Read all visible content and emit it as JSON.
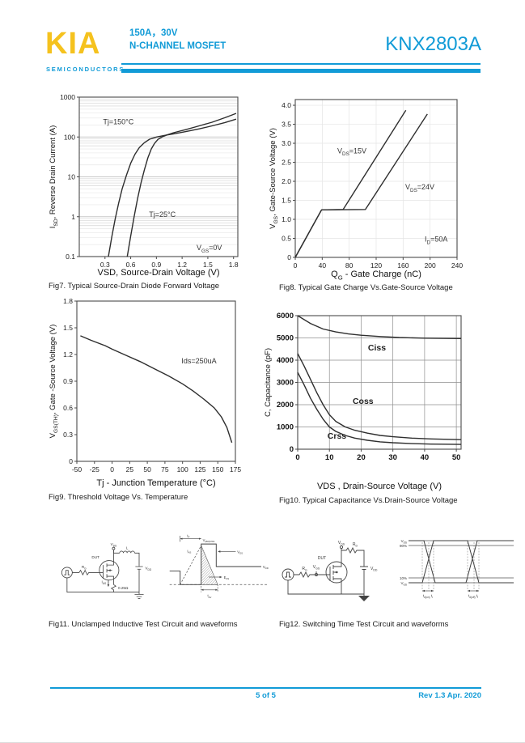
{
  "header": {
    "logo": "KIA",
    "logo_sub": "SEMICONDUCTORS",
    "rating": "150A，30V",
    "device_type": "N-CHANNEL MOSFET",
    "part_number": "KNX2803A"
  },
  "colors": {
    "accent": "#119bd7",
    "logo_yellow": "#f5c21e",
    "curve": "#2e2e2e",
    "grid_light": "#ececec",
    "grid_dark": "#8f8f8f"
  },
  "chart_data": [
    {
      "id": "fig7",
      "type": "line",
      "caption": "Fig7. Typical Source-Drain Diode Forward Voltage",
      "xlabel": "VSD, Source-Drain Voltage (V)",
      "ylabel": "I~SD~, Reverse Drain Current (A)",
      "xlim": [
        0,
        1.85
      ],
      "ylim": [
        0.1,
        1000
      ],
      "yscale": "log",
      "grid": "logband",
      "xticks": [
        0.3,
        0.6,
        0.9,
        1.2,
        1.5,
        1.8
      ],
      "xtick_labels": [
        "0.3",
        "0.6",
        "0.9",
        "1.2",
        "1.5",
        "1.8"
      ],
      "yticks": [
        0.1,
        1,
        10,
        100,
        1000
      ],
      "ytick_labels": [
        "0.1",
        "1",
        "10",
        "100",
        "1000"
      ],
      "series": [
        {
          "name": "Tj=150C",
          "points": [
            [
              0.34,
              0.1
            ],
            [
              0.38,
              0.32
            ],
            [
              0.42,
              0.9
            ],
            [
              0.46,
              2.2
            ],
            [
              0.5,
              5
            ],
            [
              0.55,
              11
            ],
            [
              0.6,
              22
            ],
            [
              0.65,
              37
            ],
            [
              0.7,
              54
            ],
            [
              0.76,
              72
            ],
            [
              0.82,
              88
            ],
            [
              0.9,
              100
            ],
            [
              1.02,
              112
            ],
            [
              1.1,
              120
            ],
            [
              1.25,
              138
            ],
            [
              1.4,
              160
            ],
            [
              1.55,
              190
            ],
            [
              1.7,
              230
            ],
            [
              1.83,
              280
            ]
          ]
        },
        {
          "name": "Tj=25C",
          "points": [
            [
              0.56,
              0.1
            ],
            [
              0.6,
              0.33
            ],
            [
              0.64,
              1.0
            ],
            [
              0.68,
              2.8
            ],
            [
              0.72,
              7
            ],
            [
              0.76,
              15
            ],
            [
              0.8,
              30
            ],
            [
              0.84,
              50
            ],
            [
              0.88,
              70
            ],
            [
              0.92,
              88
            ],
            [
              0.97,
              101
            ],
            [
              1.02,
              112
            ],
            [
              1.1,
              128
            ],
            [
              1.25,
              155
            ],
            [
              1.4,
              190
            ],
            [
              1.55,
              235
            ],
            [
              1.7,
              305
            ],
            [
              1.83,
              390
            ]
          ]
        }
      ],
      "annotations": [
        {
          "text": "Tj=150°C",
          "fx": 0.15,
          "fy": 0.17
        },
        {
          "text": "Tj=25°C",
          "fx": 0.44,
          "fy": 0.75
        },
        {
          "text": "V~GS~=0V",
          "fx": 0.74,
          "fy": 0.96
        }
      ]
    },
    {
      "id": "fig8",
      "type": "line",
      "caption": "Fig8. Typical Gate Charge Vs.Gate-Source Voltage",
      "xlabel": "Q~G~ - Gate Charge (nC)",
      "ylabel": "V~GS~, Gate-Source Voltage (V)",
      "xlim": [
        0,
        240
      ],
      "ylim": [
        0,
        4.15
      ],
      "yscale": "linear",
      "grid": "faint",
      "xticks": [
        0,
        40,
        80,
        120,
        160,
        200,
        240
      ],
      "xtick_labels": [
        "0",
        "40",
        "80",
        "120",
        "160",
        "200",
        "240"
      ],
      "yticks": [
        0,
        0.5,
        1.0,
        1.5,
        2.0,
        2.5,
        3.0,
        3.5,
        4.0
      ],
      "ytick_labels": [
        "0",
        "0.5",
        "1.0",
        "1.5",
        "2.0",
        "2.5",
        "3.0",
        "3.5",
        "4.0"
      ],
      "series": [
        {
          "name": "VDS=15V",
          "points": [
            [
              0,
              0
            ],
            [
              39,
              1.25
            ],
            [
              71,
              1.26
            ],
            [
              164,
              3.87
            ]
          ]
        },
        {
          "name": "VDS=24V",
          "points": [
            [
              0,
              0
            ],
            [
              39,
              1.25
            ],
            [
              104,
              1.26
            ],
            [
              196,
              3.77
            ]
          ]
        }
      ],
      "annotations": [
        {
          "text": "V~DS~=15V",
          "fx": 0.26,
          "fy": 0.34
        },
        {
          "text": "V~DS~=24V",
          "fx": 0.68,
          "fy": 0.57
        },
        {
          "text": "I~D~=50A",
          "fx": 0.8,
          "fy": 0.9
        }
      ]
    },
    {
      "id": "fig9",
      "type": "line",
      "caption": "Fig9. Threshold Voltage Vs. Temperature",
      "xlabel": "Tj - Junction Temperature (°C)",
      "ylabel": "V~GS(TH)~, Gate -Source Voltage (V)",
      "xlim": [
        -50,
        175
      ],
      "ylim": [
        0,
        1.8
      ],
      "yscale": "linear",
      "grid": "none",
      "xticks": [
        -50,
        -25,
        0,
        25,
        50,
        75,
        100,
        125,
        150,
        175
      ],
      "xtick_labels": [
        "-50",
        "-25",
        "0",
        "25",
        "50",
        "75",
        "100",
        "125",
        "150",
        "175"
      ],
      "yticks": [
        0,
        0.3,
        0.6,
        0.9,
        1.2,
        1.5,
        1.8
      ],
      "ytick_labels": [
        "0",
        "0.3",
        "0.6",
        "0.9",
        "1.2",
        "1.5",
        "1.8"
      ],
      "series": [
        {
          "name": "Vth",
          "points": [
            [
              -45,
              1.41
            ],
            [
              -30,
              1.36
            ],
            [
              -10,
              1.3
            ],
            [
              0,
              1.26
            ],
            [
              20,
              1.19
            ],
            [
              40,
              1.12
            ],
            [
              60,
              1.04
            ],
            [
              80,
              0.96
            ],
            [
              100,
              0.87
            ],
            [
              115,
              0.79
            ],
            [
              130,
              0.7
            ],
            [
              145,
              0.6
            ],
            [
              155,
              0.5
            ],
            [
              163,
              0.38
            ],
            [
              170,
              0.21
            ]
          ]
        }
      ],
      "annotations": [
        {
          "text": "Ids=250uA",
          "fx": 0.66,
          "fy": 0.39
        }
      ]
    },
    {
      "id": "fig10",
      "type": "line",
      "caption": "Fig10. Typical Capacitance Vs.Drain-Source Voltage",
      "xlabel": "VDS , Drain-Source Voltage (V)",
      "ylabel": "C, Capacitance (pF)",
      "xlim": [
        0,
        51.5
      ],
      "ylim": [
        0,
        6000
      ],
      "yscale": "linear",
      "grid": "full",
      "xticks": [
        0,
        10,
        20,
        30,
        40,
        50
      ],
      "xtick_labels": [
        "0",
        "10",
        "20",
        "30",
        "40",
        "50"
      ],
      "yticks": [
        0,
        1000,
        2000,
        3000,
        4000,
        5000,
        6000
      ],
      "ytick_labels": [
        "0",
        "1000",
        "2000",
        "3000",
        "4000",
        "5000",
        "6000"
      ],
      "series": [
        {
          "name": "Ciss",
          "points": [
            [
              0,
              6000
            ],
            [
              4,
              5650
            ],
            [
              8,
              5400
            ],
            [
              12,
              5270
            ],
            [
              16,
              5180
            ],
            [
              20,
              5120
            ],
            [
              26,
              5060
            ],
            [
              32,
              5020
            ],
            [
              40,
              4990
            ],
            [
              51.5,
              4970
            ]
          ]
        },
        {
          "name": "Coss",
          "points": [
            [
              0,
              4300
            ],
            [
              2,
              3750
            ],
            [
              4,
              3150
            ],
            [
              6,
              2550
            ],
            [
              8,
              2000
            ],
            [
              10,
              1550
            ],
            [
              12,
              1250
            ],
            [
              15,
              1000
            ],
            [
              18,
              850
            ],
            [
              22,
              720
            ],
            [
              26,
              620
            ],
            [
              30,
              560
            ],
            [
              36,
              500
            ],
            [
              42,
              460
            ],
            [
              51.5,
              430
            ]
          ]
        },
        {
          "name": "Crss",
          "points": [
            [
              0,
              3450
            ],
            [
              2,
              2900
            ],
            [
              4,
              2300
            ],
            [
              6,
              1800
            ],
            [
              8,
              1350
            ],
            [
              10,
              1000
            ],
            [
              12,
              800
            ],
            [
              15,
              620
            ],
            [
              18,
              500
            ],
            [
              22,
              400
            ],
            [
              26,
              330
            ],
            [
              30,
              290
            ],
            [
              36,
              250
            ],
            [
              42,
              230
            ],
            [
              51.5,
              215
            ]
          ]
        }
      ],
      "annotations": [
        {
          "text": "Ciss",
          "fx": 0.485,
          "fy": 0.26,
          "anchor": "m"
        },
        {
          "text": "Coss",
          "fx": 0.4,
          "fy": 0.66,
          "anchor": "m"
        },
        {
          "text": "Crss",
          "fx": 0.24,
          "fy": 0.92,
          "anchor": "m"
        }
      ]
    }
  ],
  "figures": {
    "fig11": {
      "caption": "Fig11. Unclamped Inductive Test Circuit and waveforms",
      "circuit": {
        "vds": "V~DS~",
        "l": "L",
        "dut": "DUT",
        "rg": "R~G~",
        "vdd": "V~DD~",
        "ias": "I~AS~",
        "rsense": "0.25Ω"
      },
      "waveform": {
        "tp": "t~P~",
        "bv": "V~(BR)DSS~",
        "vds": "V~DS~",
        "vdd": "V~DD~",
        "ias": "I~AS~",
        "eas": "E~AS~",
        "tav": "t~AV~"
      }
    },
    "fig12": {
      "caption": "Fig12. Switching Time Test Circuit and waveforms",
      "circuit": {
        "vds": "V~DS~",
        "rd": "R~D~",
        "dut": "DUT",
        "rg": "R~G~",
        "vgs": "V~GS~",
        "vdd": "V~DD~"
      },
      "waveform": {
        "vds": "V~DS~",
        "p90": "90%",
        "p10": "10%",
        "vgs": "V~GS~",
        "ton": "t~d(on)~ t~r~",
        "toff": "t~d(off)~ t~f~"
      }
    }
  },
  "footer": {
    "page_number": "5 of 5",
    "revision": "Rev 1.3 Apr. 2020"
  }
}
